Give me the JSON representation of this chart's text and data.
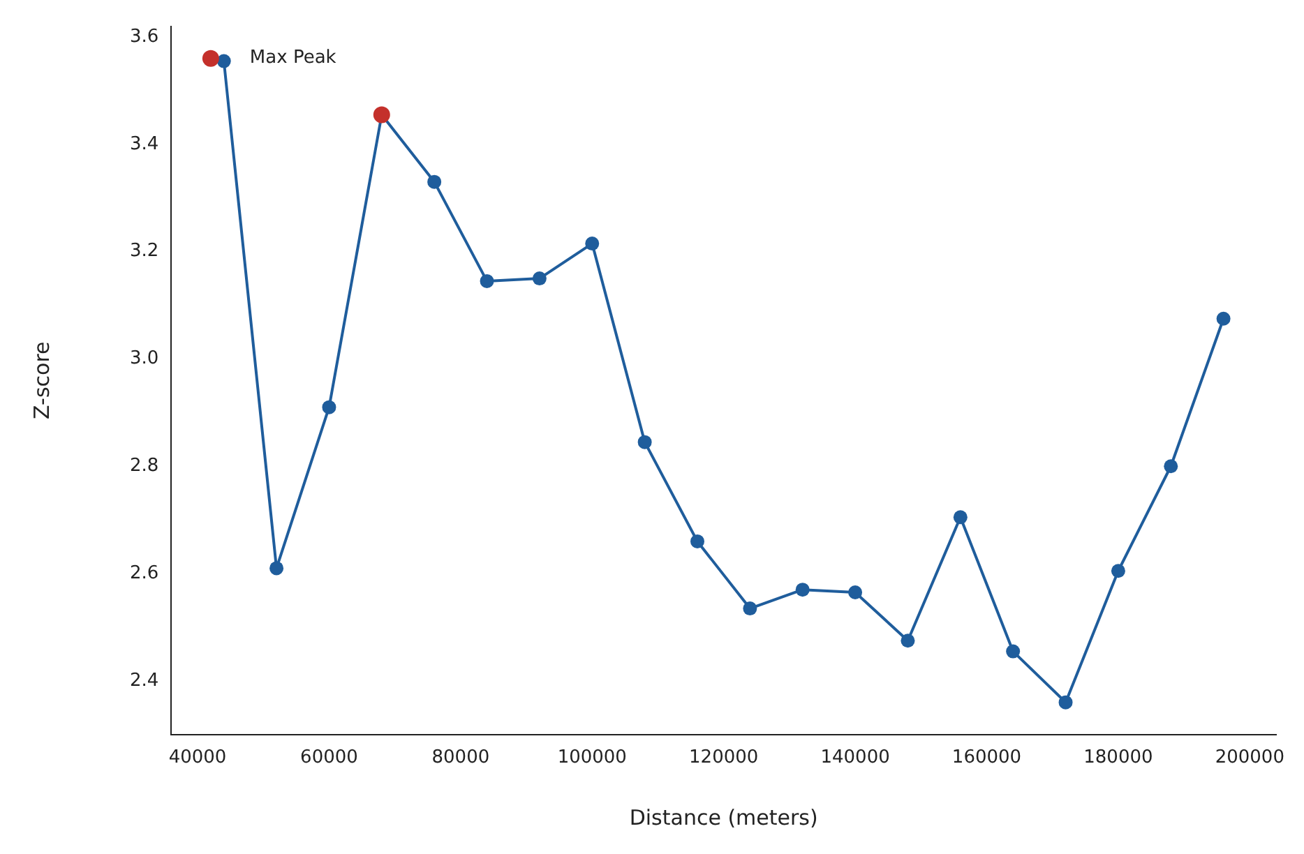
{
  "chart_data": {
    "type": "line",
    "xlabel": "Distance (meters)",
    "ylabel": "Z-score",
    "x": [
      44000,
      52000,
      60000,
      68000,
      76000,
      84000,
      92000,
      100000,
      108000,
      116000,
      124000,
      132000,
      140000,
      148000,
      156000,
      164000,
      172000,
      180000,
      188000,
      196000
    ],
    "series": [
      {
        "color": "#1f5d9c",
        "values": [
          3.555,
          2.61,
          2.91,
          3.455,
          3.33,
          3.145,
          3.15,
          3.215,
          2.845,
          2.66,
          2.535,
          2.57,
          2.565,
          2.475,
          2.705,
          2.455,
          2.36,
          2.605,
          2.8,
          3.075
        ]
      },
      {
        "type": "scatter",
        "color": "#c4302b",
        "x": [
          42000,
          68000
        ],
        "values": [
          3.56,
          3.455
        ]
      }
    ],
    "annotations": [
      "Max Peak"
    ],
    "xlim": [
      36000,
      204000
    ],
    "xticks": [
      40000,
      60000,
      80000,
      100000,
      120000,
      140000,
      160000,
      180000,
      200000
    ],
    "ylim": [
      2.3,
      3.62
    ],
    "yticks": [
      2.4,
      2.6,
      2.8,
      {
        "value": 3.0,
        "label": "3.0"
      },
      3.2,
      3.4,
      3.6
    ],
    "marker": "circle",
    "line_style": "solid",
    "grid": false,
    "legend": false
  }
}
